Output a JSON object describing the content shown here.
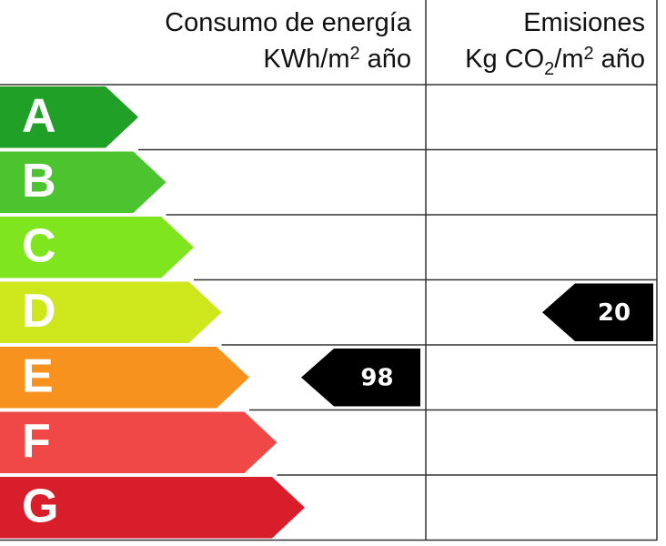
{
  "header": {
    "consumption": {
      "title": "Consumo de energía",
      "unit_parts": [
        "KWh/m",
        "2",
        "año"
      ]
    },
    "emissions": {
      "title": "Emisiones",
      "unit_parts": [
        "Kg CO",
        "2",
        "/m",
        "2",
        "año"
      ]
    }
  },
  "ratings": [
    {
      "letter": "A",
      "color": "#21a027"
    },
    {
      "letter": "B",
      "color": "#4cc42f"
    },
    {
      "letter": "C",
      "color": "#7fe51e"
    },
    {
      "letter": "D",
      "color": "#cde71c"
    },
    {
      "letter": "E",
      "color": "#f7921e"
    },
    {
      "letter": "F",
      "color": "#f04846"
    },
    {
      "letter": "G",
      "color": "#d81e2a"
    }
  ],
  "consumption_value": {
    "rating": "E",
    "value": 98
  },
  "emissions_value": {
    "rating": "D",
    "value": 20
  }
}
